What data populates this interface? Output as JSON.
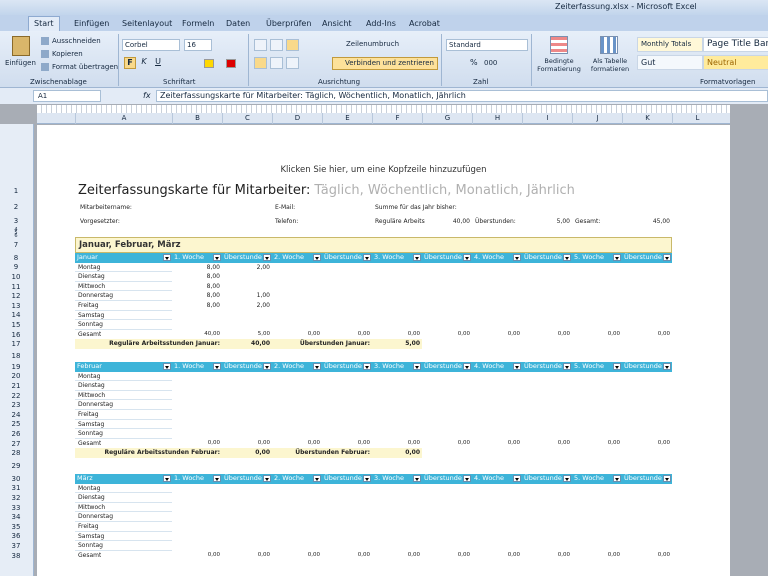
{
  "window_title": "Zeiterfassung.xlsx - Microsoft Excel",
  "tabs": [
    "Start",
    "Einfügen",
    "Seitenlayout",
    "Formeln",
    "Daten",
    "Überprüfen",
    "Ansicht",
    "Add-Ins",
    "Acrobat"
  ],
  "ribbon": {
    "clipboard": {
      "paste": "Einfügen",
      "cut": "Ausschneiden",
      "copy": "Kopieren",
      "format_painter": "Format übertragen",
      "label": "Zwischenablage"
    },
    "font": {
      "name": "Corbel",
      "size": "16",
      "bold": "F",
      "italic": "K",
      "underline": "U",
      "label": "Schriftart"
    },
    "alignment": {
      "wrap": "Zeilenumbruch",
      "merge": "Verbinden und zentrieren",
      "label": "Ausrichtung"
    },
    "number": {
      "format": "Standard",
      "percent": "%",
      "thousands": "000",
      "label": "Zahl"
    },
    "styles": {
      "conditional": "Bedingte Formatierung",
      "as_table": "Als Tabelle formatieren",
      "cells": [
        "Monthly Totals",
        "Page Title Bar",
        "Gut",
        "Neutral"
      ],
      "label": "Formatvorlagen"
    }
  },
  "formula_bar": {
    "name_box": "A1",
    "fx": "fx",
    "formula": "Zeiterfassungskarte für Mitarbeiter: Täglich, Wöchentlich, Monatlich, Jährlich"
  },
  "columns": [
    "A",
    "B",
    "C",
    "D",
    "E",
    "F",
    "G",
    "H",
    "I",
    "J",
    "K",
    "L"
  ],
  "row_numbers": [
    1,
    2,
    3,
    4,
    5,
    6,
    7,
    8,
    9,
    10,
    11,
    12,
    13,
    14,
    15,
    16,
    17,
    18,
    19,
    20,
    21,
    22,
    23,
    24,
    25,
    26,
    27,
    28,
    29,
    30,
    31,
    32,
    33,
    34,
    35,
    36,
    37,
    38
  ],
  "sheet": {
    "header_hint": "Klicken Sie hier, um eine Kopfzeile hinzuzufügen",
    "title": "Zeiterfassungskarte für Mitarbeiter:",
    "title_suffix": "Täglich, Wöchentlich, Monatlich, Jährlich",
    "info": [
      [
        "Mitarbeitername:",
        "E-Mail:",
        "Summe für das Jahr bisher:"
      ],
      [
        "Vorgesetzter:",
        "Telefon:",
        "Reguläre Arbeits",
        "40,00",
        "Überstunden:",
        "5,00",
        "Gesamt:",
        "45,00"
      ]
    ],
    "quarter": "Januar, Februar, März",
    "week_headers": [
      "1. Woche",
      "Überstunde",
      "2. Woche",
      "Überstunde",
      "3. Woche",
      "Überstunde",
      "4. Woche",
      "Überstunde",
      "5. Woche",
      "Überstunde"
    ],
    "days": [
      "Montag",
      "Dienstag",
      "Mittwoch",
      "Donnerstag",
      "Freitag",
      "Samstag",
      "Sonntag",
      "Gesamt"
    ],
    "months": [
      {
        "name": "Januar",
        "hours": [
          [
            "8,00",
            "2,00"
          ],
          [
            "8,00"
          ],
          [
            "8,00"
          ],
          [
            "8,00",
            "1,00"
          ],
          [
            "8,00",
            "2,00"
          ],
          [],
          []
        ],
        "totals": [
          "40,00",
          "5,00",
          "0,00",
          "0,00",
          "0,00",
          "0,00",
          "0,00",
          "0,00",
          "0,00",
          "0,00"
        ],
        "summary": [
          "Reguläre Arbeitsstunden Januar:",
          "40,00",
          "Überstunden Januar:",
          "5,00"
        ]
      },
      {
        "name": "Februar",
        "hours": [
          [],
          [],
          [],
          [],
          [],
          [],
          []
        ],
        "totals": [
          "0,00",
          "0,00",
          "0,00",
          "0,00",
          "0,00",
          "0,00",
          "0,00",
          "0,00",
          "0,00",
          "0,00"
        ],
        "summary": [
          "Reguläre Arbeitsstunden Februar:",
          "0,00",
          "Überstunden Februar:",
          "0,00"
        ]
      },
      {
        "name": "März",
        "hours": [
          [],
          [],
          [],
          [],
          [],
          [],
          []
        ],
        "totals": [
          "0,00",
          "0,00",
          "0,00",
          "0,00",
          "0,00",
          "0,00",
          "0,00",
          "0,00",
          "0,00",
          "0,00"
        ]
      }
    ]
  }
}
